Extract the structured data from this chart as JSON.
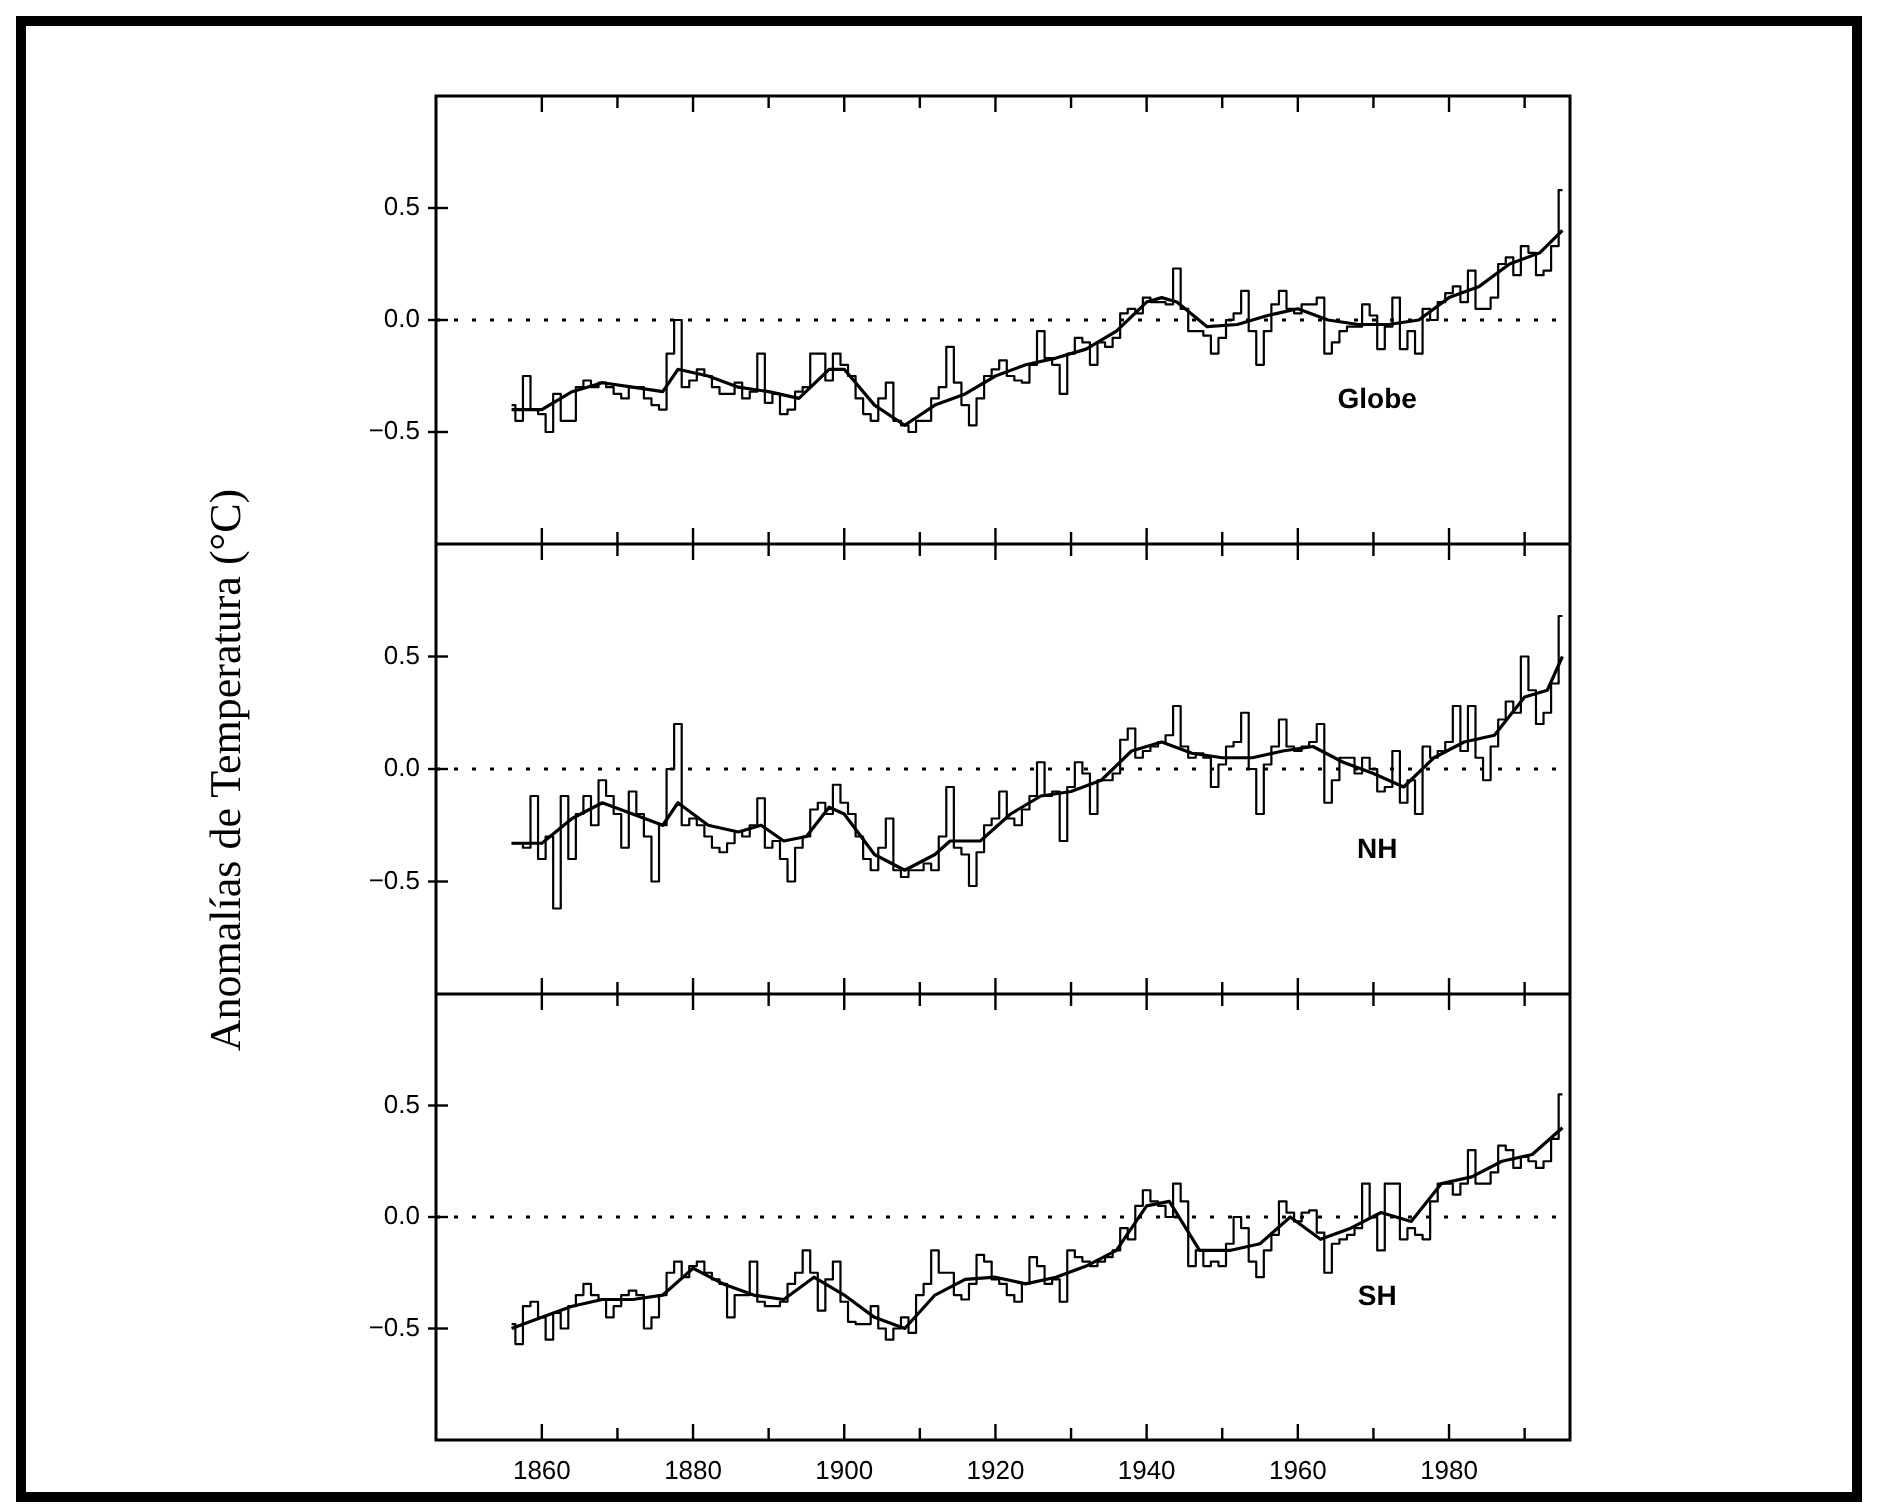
{
  "chart_data": [
    {
      "type": "step",
      "annotations": [
        "Globe"
      ],
      "xlim": [
        1846,
        1996
      ],
      "xticks": [
        1860,
        {
          "value": 1870,
          "label": null
        },
        1880,
        {
          "value": 1890,
          "label": null
        },
        1900,
        {
          "value": 1910,
          "label": null
        },
        1920,
        {
          "value": 1930,
          "label": null
        },
        1940,
        {
          "value": 1950,
          "label": null
        },
        1960,
        {
          "value": 1970,
          "label": null
        },
        1980,
        {
          "value": 1990,
          "label": null
        }
      ],
      "ylim": [
        -1,
        1
      ],
      "yticks": [
        {
          "value": -0.5,
          "label": "−0.5"
        },
        {
          "value": 0,
          "label": "0.0"
        },
        {
          "value": 0.5,
          "label": "0.5"
        }
      ],
      "tick_labels": "y",
      "marker": "none",
      "legend": false,
      "ref_lines": [
        {
          "axis": "y",
          "value": 0,
          "line_style": "dotted",
          "color": "#000000"
        }
      ],
      "series": [
        {
          "type": "step",
          "color": "#000000",
          "x": [
            1856,
            1857,
            1858,
            1859,
            1860,
            1861,
            1862,
            1863,
            1864,
            1865,
            1866,
            1867,
            1868,
            1869,
            1870,
            1871,
            1872,
            1873,
            1874,
            1875,
            1876,
            1877,
            1878,
            1879,
            1880,
            1881,
            1882,
            1883,
            1884,
            1885,
            1886,
            1887,
            1888,
            1889,
            1890,
            1891,
            1892,
            1893,
            1894,
            1895,
            1896,
            1897,
            1898,
            1899,
            1900,
            1901,
            1902,
            1903,
            1904,
            1905,
            1906,
            1907,
            1908,
            1909,
            1910,
            1911,
            1912,
            1913,
            1914,
            1915,
            1916,
            1917,
            1918,
            1919,
            1920,
            1921,
            1922,
            1923,
            1924,
            1925,
            1926,
            1927,
            1928,
            1929,
            1930,
            1931,
            1932,
            1933,
            1934,
            1935,
            1936,
            1937,
            1938,
            1939,
            1940,
            1941,
            1942,
            1943,
            1944,
            1945,
            1946,
            1947,
            1948,
            1949,
            1950,
            1951,
            1952,
            1953,
            1954,
            1955,
            1956,
            1957,
            1958,
            1959,
            1960,
            1961,
            1962,
            1963,
            1964,
            1965,
            1966,
            1967,
            1968,
            1969,
            1970,
            1971,
            1972,
            1973,
            1974,
            1975,
            1976,
            1977,
            1978,
            1979,
            1980,
            1981,
            1982,
            1983,
            1984,
            1985,
            1986,
            1987,
            1988,
            1989,
            1990,
            1991,
            1992,
            1993,
            1994,
            1995
          ],
          "values": [
            -0.38,
            -0.45,
            -0.25,
            -0.4,
            -0.42,
            -0.5,
            -0.33,
            -0.45,
            -0.45,
            -0.3,
            -0.27,
            -0.3,
            -0.28,
            -0.3,
            -0.33,
            -0.35,
            -0.3,
            -0.3,
            -0.35,
            -0.38,
            -0.4,
            -0.15,
            0.0,
            -0.3,
            -0.27,
            -0.22,
            -0.25,
            -0.3,
            -0.33,
            -0.33,
            -0.28,
            -0.35,
            -0.32,
            -0.15,
            -0.37,
            -0.33,
            -0.42,
            -0.4,
            -0.32,
            -0.3,
            -0.15,
            -0.15,
            -0.27,
            -0.15,
            -0.2,
            -0.25,
            -0.35,
            -0.42,
            -0.45,
            -0.35,
            -0.28,
            -0.45,
            -0.47,
            -0.5,
            -0.45,
            -0.45,
            -0.35,
            -0.3,
            -0.12,
            -0.28,
            -0.38,
            -0.47,
            -0.35,
            -0.25,
            -0.22,
            -0.18,
            -0.25,
            -0.27,
            -0.28,
            -0.2,
            -0.05,
            -0.17,
            -0.2,
            -0.33,
            -0.15,
            -0.08,
            -0.1,
            -0.2,
            -0.1,
            -0.12,
            -0.08,
            0.03,
            0.05,
            0.03,
            0.1,
            0.08,
            0.08,
            0.07,
            0.23,
            0.05,
            -0.05,
            -0.05,
            -0.07,
            -0.15,
            -0.08,
            0.0,
            0.03,
            0.13,
            -0.05,
            -0.2,
            -0.05,
            0.07,
            0.13,
            0.05,
            0.03,
            0.07,
            0.07,
            0.1,
            -0.15,
            -0.1,
            -0.05,
            -0.03,
            -0.03,
            0.07,
            0.02,
            -0.13,
            -0.03,
            0.1,
            -0.13,
            -0.05,
            -0.15,
            0.05,
            0.0,
            0.08,
            0.12,
            0.15,
            0.08,
            0.22,
            0.05,
            0.05,
            0.1,
            0.25,
            0.28,
            0.2,
            0.33,
            0.3,
            0.2,
            0.22,
            0.33,
            0.58
          ]
        },
        {
          "type": "line",
          "color": "#000000",
          "x": [
            1856,
            1860,
            1864,
            1868,
            1872,
            1876,
            1878,
            1882,
            1886,
            1890,
            1894,
            1898,
            1900,
            1904,
            1908,
            1912,
            1916,
            1920,
            1924,
            1928,
            1932,
            1936,
            1940,
            1942,
            1944,
            1948,
            1952,
            1956,
            1960,
            1964,
            1968,
            1972,
            1976,
            1980,
            1984,
            1988,
            1992,
            1995
          ],
          "values": [
            -0.4,
            -0.4,
            -0.32,
            -0.28,
            -0.3,
            -0.32,
            -0.22,
            -0.25,
            -0.3,
            -0.32,
            -0.35,
            -0.22,
            -0.22,
            -0.38,
            -0.47,
            -0.38,
            -0.33,
            -0.25,
            -0.2,
            -0.17,
            -0.13,
            -0.05,
            0.08,
            0.1,
            0.08,
            -0.03,
            -0.02,
            0.02,
            0.05,
            0.0,
            -0.02,
            -0.02,
            0.0,
            0.1,
            0.15,
            0.25,
            0.3,
            0.4
          ]
        }
      ]
    },
    {
      "type": "step",
      "ylabel": "Anomalías de Temperatura (°C)",
      "annotations": [
        "NH"
      ],
      "xlim": [
        1846,
        1996
      ],
      "xticks": [
        1860,
        {
          "value": 1870,
          "label": null
        },
        1880,
        {
          "value": 1890,
          "label": null
        },
        1900,
        {
          "value": 1910,
          "label": null
        },
        1920,
        {
          "value": 1930,
          "label": null
        },
        1940,
        {
          "value": 1950,
          "label": null
        },
        1960,
        {
          "value": 1970,
          "label": null
        },
        1980,
        {
          "value": 1990,
          "label": null
        }
      ],
      "ylim": [
        -1,
        1
      ],
      "yticks": [
        {
          "value": -0.5,
          "label": "−0.5"
        },
        {
          "value": 0,
          "label": "0.0"
        },
        {
          "value": 0.5,
          "label": "0.5"
        }
      ],
      "tick_labels": "y",
      "marker": "none",
      "legend": false,
      "ref_lines": [
        {
          "axis": "y",
          "value": 0,
          "line_style": "dotted",
          "color": "#000000"
        }
      ],
      "series": [
        {
          "type": "step",
          "color": "#000000",
          "x": [
            1856,
            1857,
            1858,
            1859,
            1860,
            1861,
            1862,
            1863,
            1864,
            1865,
            1866,
            1867,
            1868,
            1869,
            1870,
            1871,
            1872,
            1873,
            1874,
            1875,
            1876,
            1877,
            1878,
            1879,
            1880,
            1881,
            1882,
            1883,
            1884,
            1885,
            1886,
            1887,
            1888,
            1889,
            1890,
            1891,
            1892,
            1893,
            1894,
            1895,
            1896,
            1897,
            1898,
            1899,
            1900,
            1901,
            1902,
            1903,
            1904,
            1905,
            1906,
            1907,
            1908,
            1909,
            1910,
            1911,
            1912,
            1913,
            1914,
            1915,
            1916,
            1917,
            1918,
            1919,
            1920,
            1921,
            1922,
            1923,
            1924,
            1925,
            1926,
            1927,
            1928,
            1929,
            1930,
            1931,
            1932,
            1933,
            1934,
            1935,
            1936,
            1937,
            1938,
            1939,
            1940,
            1941,
            1942,
            1943,
            1944,
            1945,
            1946,
            1947,
            1948,
            1949,
            1950,
            1951,
            1952,
            1953,
            1954,
            1955,
            1956,
            1957,
            1958,
            1959,
            1960,
            1961,
            1962,
            1963,
            1964,
            1965,
            1966,
            1967,
            1968,
            1969,
            1970,
            1971,
            1972,
            1973,
            1974,
            1975,
            1976,
            1977,
            1978,
            1979,
            1980,
            1981,
            1982,
            1983,
            1984,
            1985,
            1986,
            1987,
            1988,
            1989,
            1990,
            1991,
            1992,
            1993,
            1994,
            1995
          ],
          "values": [
            -0.33,
            -0.33,
            -0.35,
            -0.12,
            -0.4,
            -0.3,
            -0.62,
            -0.12,
            -0.4,
            -0.2,
            -0.12,
            -0.25,
            -0.05,
            -0.12,
            -0.2,
            -0.35,
            -0.1,
            -0.2,
            -0.3,
            -0.5,
            -0.25,
            0.0,
            0.2,
            -0.25,
            -0.22,
            -0.25,
            -0.3,
            -0.35,
            -0.37,
            -0.33,
            -0.28,
            -0.3,
            -0.25,
            -0.13,
            -0.35,
            -0.32,
            -0.4,
            -0.5,
            -0.35,
            -0.3,
            -0.18,
            -0.15,
            -0.2,
            -0.07,
            -0.15,
            -0.2,
            -0.3,
            -0.4,
            -0.45,
            -0.35,
            -0.22,
            -0.45,
            -0.48,
            -0.45,
            -0.45,
            -0.42,
            -0.45,
            -0.3,
            -0.08,
            -0.35,
            -0.38,
            -0.52,
            -0.37,
            -0.25,
            -0.22,
            -0.1,
            -0.22,
            -0.25,
            -0.18,
            -0.12,
            0.03,
            -0.12,
            -0.1,
            -0.32,
            -0.08,
            0.03,
            -0.02,
            -0.2,
            -0.05,
            -0.05,
            -0.02,
            0.13,
            0.18,
            0.05,
            0.08,
            0.1,
            0.12,
            0.15,
            0.28,
            0.1,
            0.05,
            0.07,
            0.05,
            -0.08,
            0.02,
            0.1,
            0.12,
            0.25,
            0.0,
            -0.2,
            0.02,
            0.1,
            0.22,
            0.1,
            0.08,
            0.1,
            0.12,
            0.2,
            -0.15,
            -0.05,
            0.05,
            0.05,
            -0.02,
            0.05,
            0.0,
            -0.1,
            -0.08,
            0.08,
            -0.15,
            -0.05,
            -0.2,
            0.1,
            0.05,
            0.08,
            0.12,
            0.28,
            0.08,
            0.28,
            0.05,
            -0.05,
            0.1,
            0.22,
            0.3,
            0.25,
            0.5,
            0.35,
            0.2,
            0.25,
            0.38,
            0.68
          ]
        },
        {
          "type": "line",
          "color": "#000000",
          "x": [
            1856,
            1860,
            1864,
            1868,
            1872,
            1876,
            1878,
            1882,
            1886,
            1889,
            1892,
            1895,
            1898,
            1900,
            1904,
            1908,
            1912,
            1914,
            1918,
            1922,
            1926,
            1930,
            1934,
            1938,
            1942,
            1946,
            1950,
            1954,
            1958,
            1962,
            1966,
            1970,
            1974,
            1978,
            1982,
            1986,
            1990,
            1993,
            1995
          ],
          "values": [
            -0.33,
            -0.33,
            -0.22,
            -0.15,
            -0.2,
            -0.25,
            -0.15,
            -0.25,
            -0.28,
            -0.25,
            -0.32,
            -0.3,
            -0.17,
            -0.2,
            -0.38,
            -0.45,
            -0.38,
            -0.32,
            -0.32,
            -0.2,
            -0.12,
            -0.1,
            -0.05,
            0.08,
            0.12,
            0.07,
            0.05,
            0.05,
            0.08,
            0.1,
            0.03,
            -0.02,
            -0.08,
            0.05,
            0.12,
            0.15,
            0.32,
            0.35,
            0.5
          ]
        }
      ]
    },
    {
      "type": "step",
      "annotations": [
        "SH"
      ],
      "xlim": [
        1846,
        1996
      ],
      "xticks": [
        1860,
        {
          "value": 1870,
          "label": null
        },
        1880,
        {
          "value": 1890,
          "label": null
        },
        1900,
        {
          "value": 1910,
          "label": null
        },
        1920,
        {
          "value": 1930,
          "label": null
        },
        1940,
        {
          "value": 1950,
          "label": null
        },
        1960,
        {
          "value": 1970,
          "label": null
        },
        1980,
        {
          "value": 1990,
          "label": null
        }
      ],
      "ylim": [
        -1,
        1
      ],
      "yticks": [
        {
          "value": -0.5,
          "label": "−0.5"
        },
        {
          "value": 0,
          "label": "0.0"
        },
        {
          "value": 0.5,
          "label": "0.5"
        }
      ],
      "marker": "none",
      "legend": false,
      "ref_lines": [
        {
          "axis": "y",
          "value": 0,
          "line_style": "dotted",
          "color": "#000000"
        }
      ],
      "series": [
        {
          "type": "step",
          "color": "#000000",
          "x": [
            1856,
            1857,
            1858,
            1859,
            1860,
            1861,
            1862,
            1863,
            1864,
            1865,
            1866,
            1867,
            1868,
            1869,
            1870,
            1871,
            1872,
            1873,
            1874,
            1875,
            1876,
            1877,
            1878,
            1879,
            1880,
            1881,
            1882,
            1883,
            1884,
            1885,
            1886,
            1887,
            1888,
            1889,
            1890,
            1891,
            1892,
            1893,
            1894,
            1895,
            1896,
            1897,
            1898,
            1899,
            1900,
            1901,
            1902,
            1903,
            1904,
            1905,
            1906,
            1907,
            1908,
            1909,
            1910,
            1911,
            1912,
            1913,
            1914,
            1915,
            1916,
            1917,
            1918,
            1919,
            1920,
            1921,
            1922,
            1923,
            1924,
            1925,
            1926,
            1927,
            1928,
            1929,
            1930,
            1931,
            1932,
            1933,
            1934,
            1935,
            1936,
            1937,
            1938,
            1939,
            1940,
            1941,
            1942,
            1943,
            1944,
            1945,
            1946,
            1947,
            1948,
            1949,
            1950,
            1951,
            1952,
            1953,
            1954,
            1955,
            1956,
            1957,
            1958,
            1959,
            1960,
            1961,
            1962,
            1963,
            1964,
            1965,
            1966,
            1967,
            1968,
            1969,
            1970,
            1971,
            1972,
            1973,
            1974,
            1975,
            1976,
            1977,
            1978,
            1979,
            1980,
            1981,
            1982,
            1983,
            1984,
            1985,
            1986,
            1987,
            1988,
            1989,
            1990,
            1991,
            1992,
            1993,
            1994,
            1995
          ],
          "values": [
            -0.48,
            -0.57,
            -0.4,
            -0.38,
            -0.45,
            -0.55,
            -0.43,
            -0.5,
            -0.4,
            -0.35,
            -0.3,
            -0.35,
            -0.37,
            -0.45,
            -0.4,
            -0.35,
            -0.33,
            -0.35,
            -0.5,
            -0.45,
            -0.35,
            -0.25,
            -0.2,
            -0.27,
            -0.22,
            -0.2,
            -0.25,
            -0.28,
            -0.3,
            -0.45,
            -0.35,
            -0.35,
            -0.2,
            -0.38,
            -0.4,
            -0.4,
            -0.38,
            -0.3,
            -0.25,
            -0.15,
            -0.25,
            -0.42,
            -0.28,
            -0.2,
            -0.38,
            -0.47,
            -0.48,
            -0.48,
            -0.4,
            -0.5,
            -0.55,
            -0.5,
            -0.45,
            -0.52,
            -0.35,
            -0.3,
            -0.15,
            -0.25,
            -0.25,
            -0.35,
            -0.37,
            -0.3,
            -0.17,
            -0.2,
            -0.28,
            -0.3,
            -0.35,
            -0.38,
            -0.3,
            -0.18,
            -0.22,
            -0.3,
            -0.28,
            -0.38,
            -0.15,
            -0.18,
            -0.2,
            -0.22,
            -0.2,
            -0.18,
            -0.15,
            -0.05,
            -0.1,
            0.05,
            0.12,
            0.07,
            0.05,
            0.0,
            0.15,
            0.07,
            -0.22,
            -0.15,
            -0.22,
            -0.2,
            -0.22,
            -0.12,
            0.0,
            -0.05,
            -0.2,
            -0.27,
            -0.15,
            -0.08,
            0.07,
            0.02,
            -0.02,
            0.02,
            0.03,
            -0.07,
            -0.25,
            -0.12,
            -0.1,
            -0.08,
            -0.05,
            0.15,
            0.0,
            -0.15,
            0.15,
            0.15,
            -0.1,
            -0.05,
            -0.08,
            -0.1,
            0.07,
            0.15,
            0.15,
            0.1,
            0.15,
            0.3,
            0.15,
            0.15,
            0.2,
            0.32,
            0.3,
            0.22,
            0.27,
            0.25,
            0.22,
            0.25,
            0.35,
            0.55
          ]
        },
        {
          "type": "line",
          "color": "#000000",
          "x": [
            1856,
            1860,
            1864,
            1868,
            1872,
            1876,
            1880,
            1884,
            1888,
            1892,
            1896,
            1900,
            1904,
            1908,
            1912,
            1916,
            1920,
            1924,
            1928,
            1932,
            1936,
            1940,
            1943,
            1947,
            1951,
            1955,
            1959,
            1963,
            1967,
            1971,
            1975,
            1979,
            1983,
            1987,
            1991,
            1995
          ],
          "values": [
            -0.5,
            -0.45,
            -0.4,
            -0.37,
            -0.37,
            -0.35,
            -0.23,
            -0.3,
            -0.35,
            -0.37,
            -0.27,
            -0.35,
            -0.45,
            -0.5,
            -0.35,
            -0.28,
            -0.27,
            -0.3,
            -0.27,
            -0.22,
            -0.15,
            0.05,
            0.07,
            -0.15,
            -0.15,
            -0.12,
            0.0,
            -0.1,
            -0.05,
            0.02,
            -0.02,
            0.15,
            0.18,
            0.25,
            0.28,
            0.4
          ]
        }
      ]
    }
  ]
}
